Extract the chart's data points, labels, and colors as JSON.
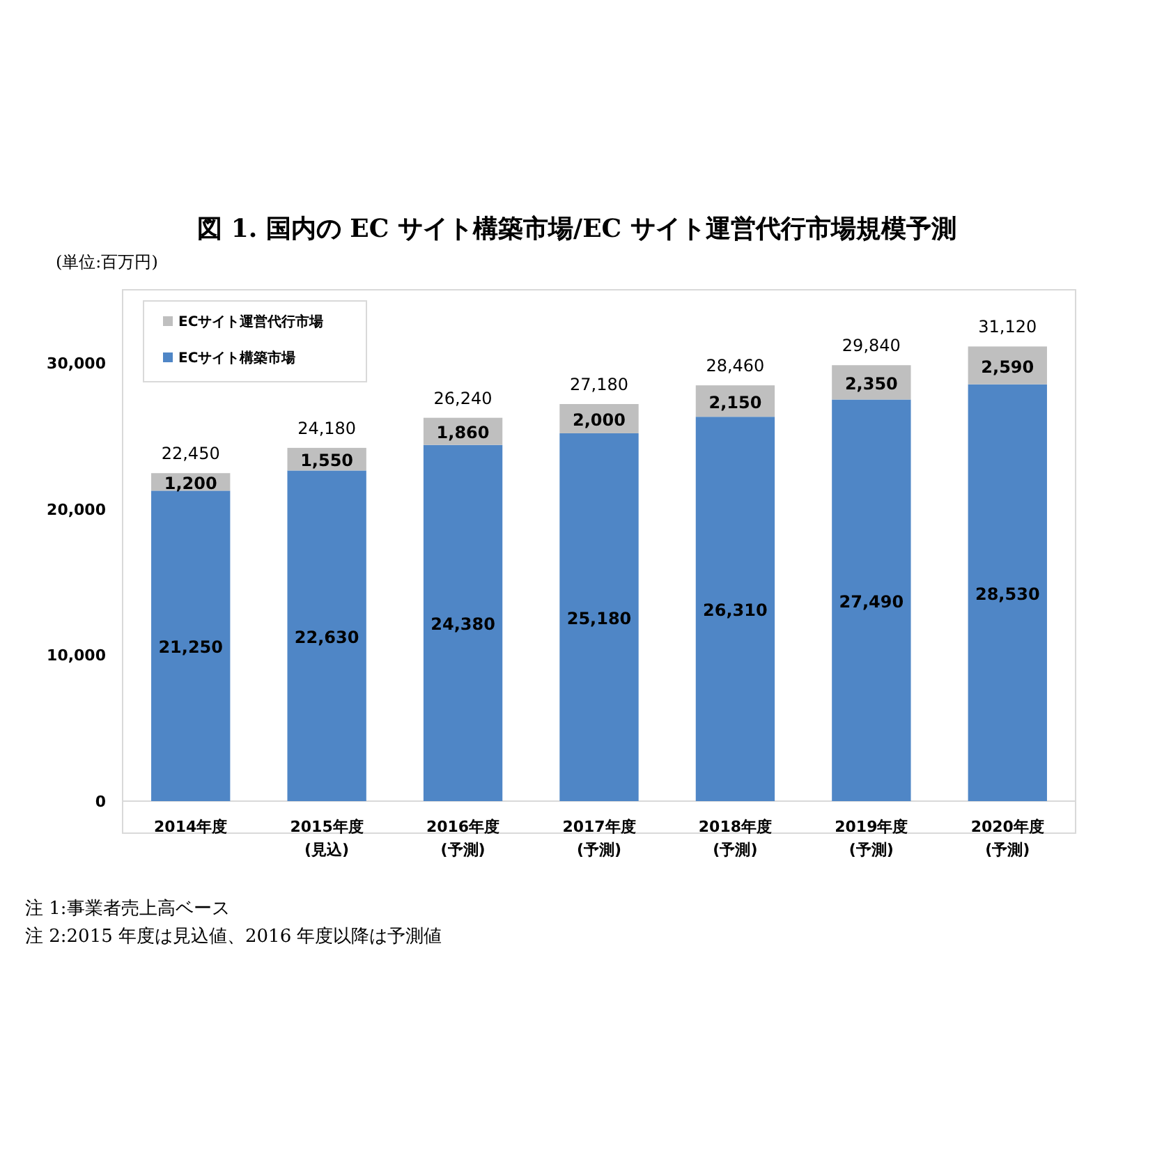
{
  "chart_data": {
    "type": "bar",
    "stacked": true,
    "title": "図 1.  国内の EC サイト構築市場/EC サイト運営代行市場規模予測",
    "categories": [
      "2014年度",
      "2015年度\n(見込)",
      "2016年度\n(予測)",
      "2017年度\n(予測)",
      "2018年度\n(予測)",
      "2019年度\n(予測)",
      "2020年度\n(予測)"
    ],
    "series": [
      {
        "name": "ECサイト構築市場",
        "color": "#4f86c6",
        "values": [
          21250,
          22630,
          24380,
          25180,
          26310,
          27490,
          28530
        ],
        "value_labels": [
          "21,250",
          "22,630",
          "24,380",
          "25,180",
          "26,310",
          "27,490",
          "28,530"
        ]
      },
      {
        "name": "ECサイト運営代行市場",
        "color": "#bfbfbf",
        "values": [
          1200,
          1550,
          1860,
          2000,
          2150,
          2350,
          2590
        ],
        "value_labels": [
          "1,200",
          "1,550",
          "1,860",
          "2,000",
          "2,150",
          "2,350",
          "2,590"
        ]
      }
    ],
    "totals": [
      "22,450",
      "24,180",
      "26,240",
      "27,180",
      "28,460",
      "29,840",
      "31,120"
    ],
    "ylim": [
      0,
      35000
    ],
    "yticks": [
      0,
      {
        "value": 10000,
        "label": "10,000"
      },
      {
        "value": 20000,
        "label": "20,000"
      },
      {
        "value": 30000,
        "label": "30,000"
      }
    ],
    "legend": "top left",
    "annotations": [
      "(単位:百万円)",
      "注 1:事業者売上高ベース",
      "注 2:2015 年度は見込値、2016 年度以降は予測値"
    ]
  }
}
